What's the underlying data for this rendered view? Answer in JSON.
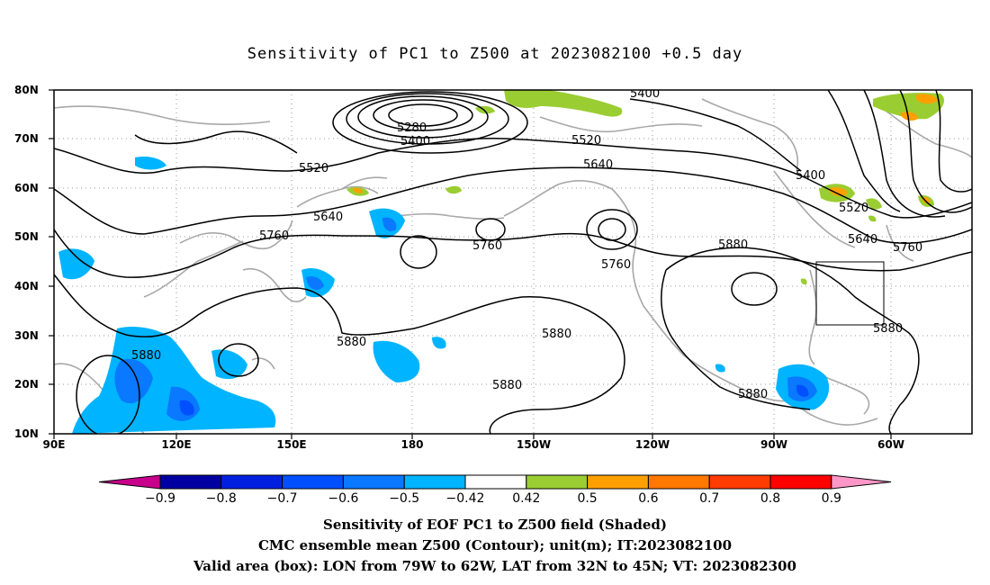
{
  "title": "Sensitivity of PC1 to Z500 at 2023082100 +0.5 day",
  "lat_labels": [
    "80N",
    "70N",
    "60N",
    "50N",
    "40N",
    "30N",
    "20N",
    "10N"
  ],
  "lon_labels": [
    "90E",
    "120E",
    "150E",
    "180",
    "150W",
    "120W",
    "90W",
    "60W"
  ],
  "contour_labels": {
    "c5400a": "5400",
    "c5280": "5280",
    "c5400b": "5400",
    "c5520a": "5520",
    "c5520b": "5520",
    "c5640a": "5640",
    "c5640b": "5640",
    "c5760a": "5760",
    "c5760b": "5760",
    "c5760c": "5760",
    "c5880a": "5880",
    "c5880b": "5880",
    "c5880c": "5880",
    "c5880d": "5880",
    "c5400c": "5400",
    "c5520c": "5520",
    "c5640c": "5640",
    "c5760d": "5760",
    "c5880e": "5880",
    "c5880f": "5880"
  },
  "colorbar": {
    "ticks": [
      "−0.9",
      "−0.8",
      "−0.7",
      "−0.6",
      "−0.5",
      "−0.42",
      "0.42",
      "0.5",
      "0.6",
      "0.7",
      "0.8",
      "0.9"
    ],
    "colors": [
      "#c8008c",
      "#0000a0",
      "#0022e0",
      "#0050ff",
      "#0a78ff",
      "#00b4ff",
      "#ffffff",
      "#9acd32",
      "#ffa000",
      "#ff7800",
      "#ff3c00",
      "#ff0000",
      "#ff96c8"
    ]
  },
  "captions": {
    "line1": "Sensitivity of EOF PC1 to Z500 field (Shaded)",
    "line2": "CMC ensemble mean Z500 (Contour); unit(m); IT:2023082100",
    "line3": "Valid area (box): LON from 79W to 62W, LAT from 32N to 45N; VT: 2023082300"
  }
}
